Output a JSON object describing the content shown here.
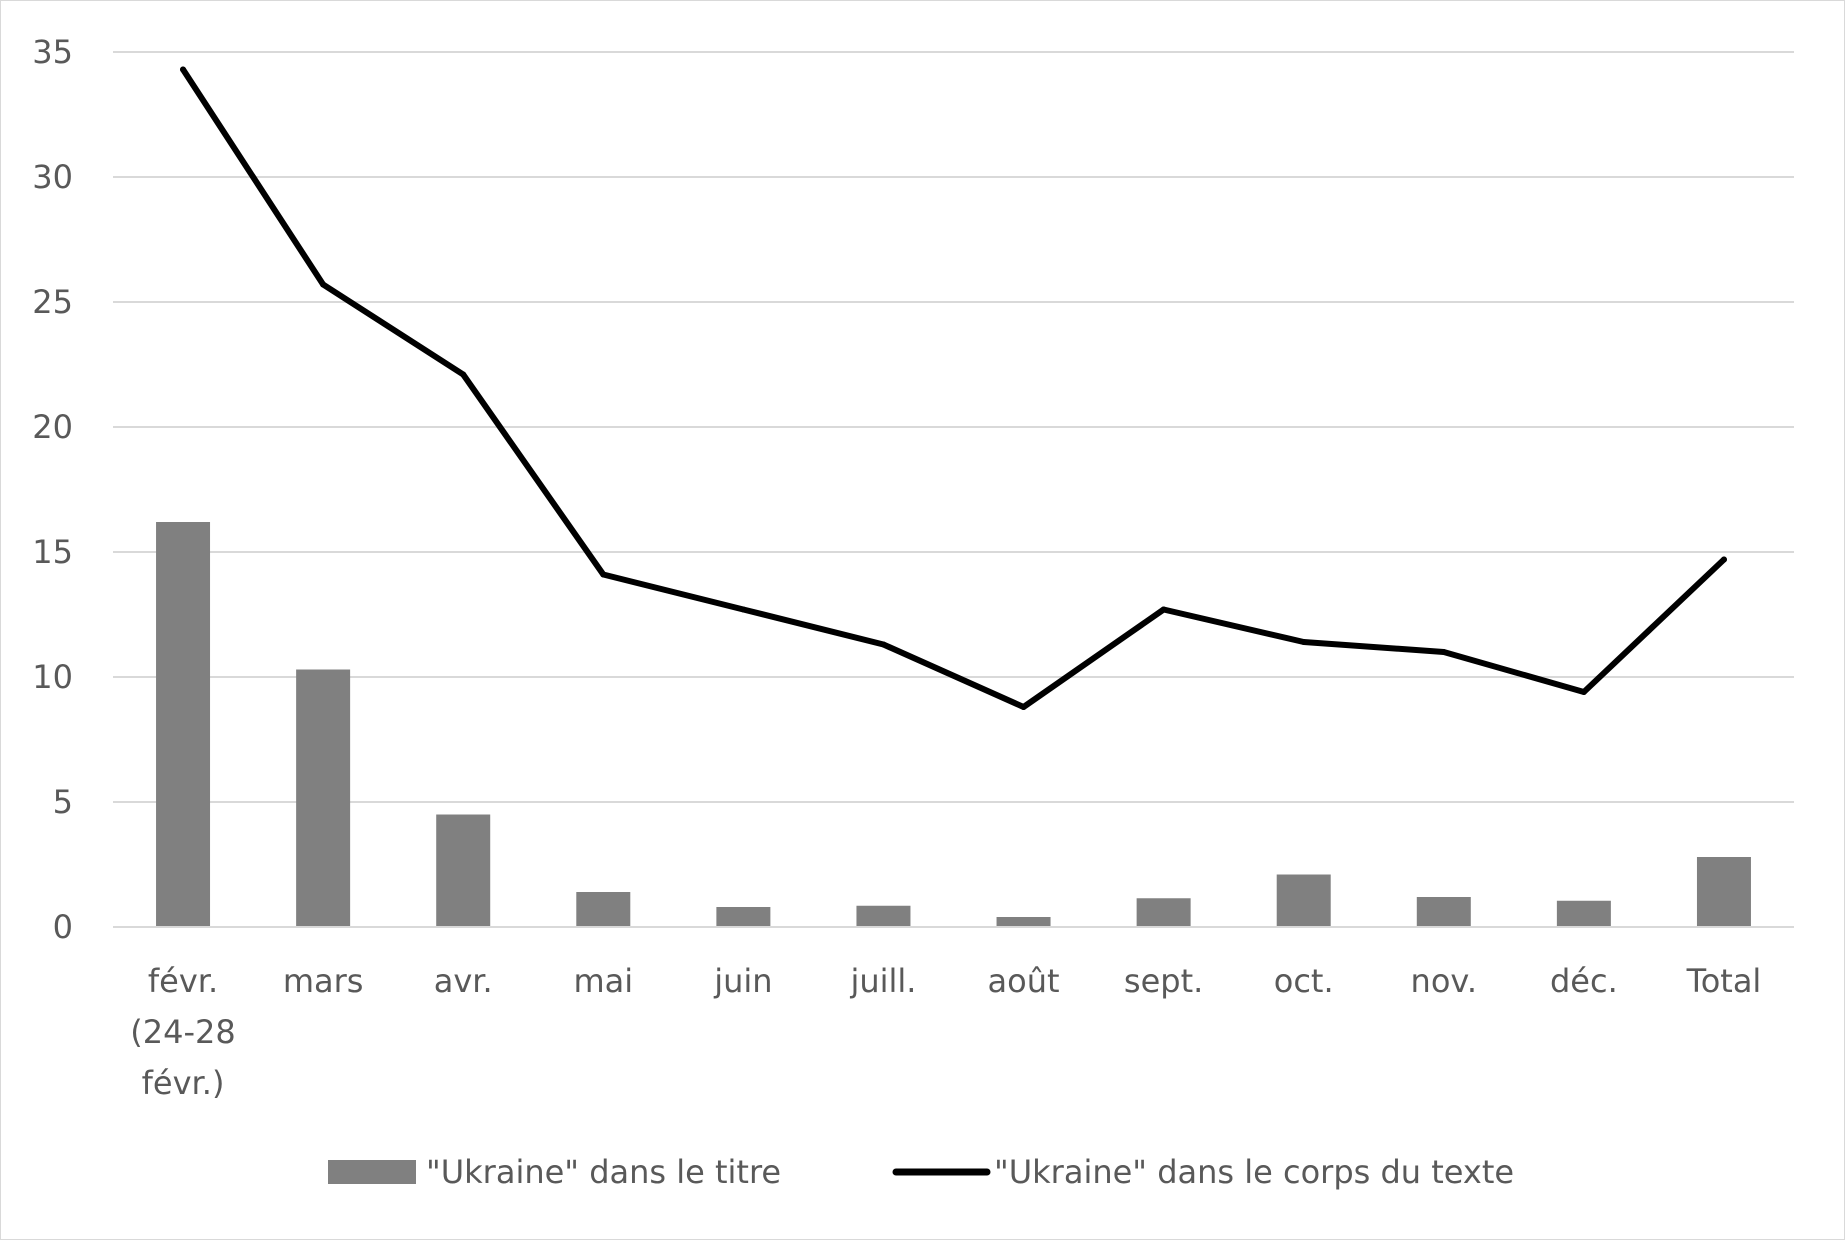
{
  "chart_data": {
    "type": "bar",
    "title": "",
    "xlabel": "",
    "ylabel": "",
    "ylim": [
      0,
      35
    ],
    "y_ticks": [
      0,
      5,
      10,
      15,
      20,
      25,
      30,
      35
    ],
    "grid": true,
    "legend_position": "bottom",
    "categories": [
      [
        "févr.",
        "(24-28",
        "févr.)"
      ],
      [
        "mars"
      ],
      [
        "avr."
      ],
      [
        "mai"
      ],
      [
        "juin"
      ],
      [
        "juill."
      ],
      [
        "août"
      ],
      [
        "sept."
      ],
      [
        "oct."
      ],
      [
        "nov."
      ],
      [
        "déc."
      ],
      [
        "Total"
      ]
    ],
    "series": [
      {
        "name": "\"Ukraine\" dans le titre",
        "type": "bar",
        "color": "#808080",
        "values": [
          16.2,
          10.3,
          4.5,
          1.4,
          0.8,
          0.85,
          0.4,
          1.15,
          2.1,
          1.2,
          1.05,
          2.8
        ]
      },
      {
        "name": "\"Ukraine\" dans le corps du texte",
        "type": "line",
        "color": "#000000",
        "values": [
          34.3,
          25.7,
          22.1,
          14.1,
          12.7,
          11.3,
          8.8,
          12.7,
          11.4,
          11.0,
          9.4,
          14.7
        ]
      }
    ]
  }
}
